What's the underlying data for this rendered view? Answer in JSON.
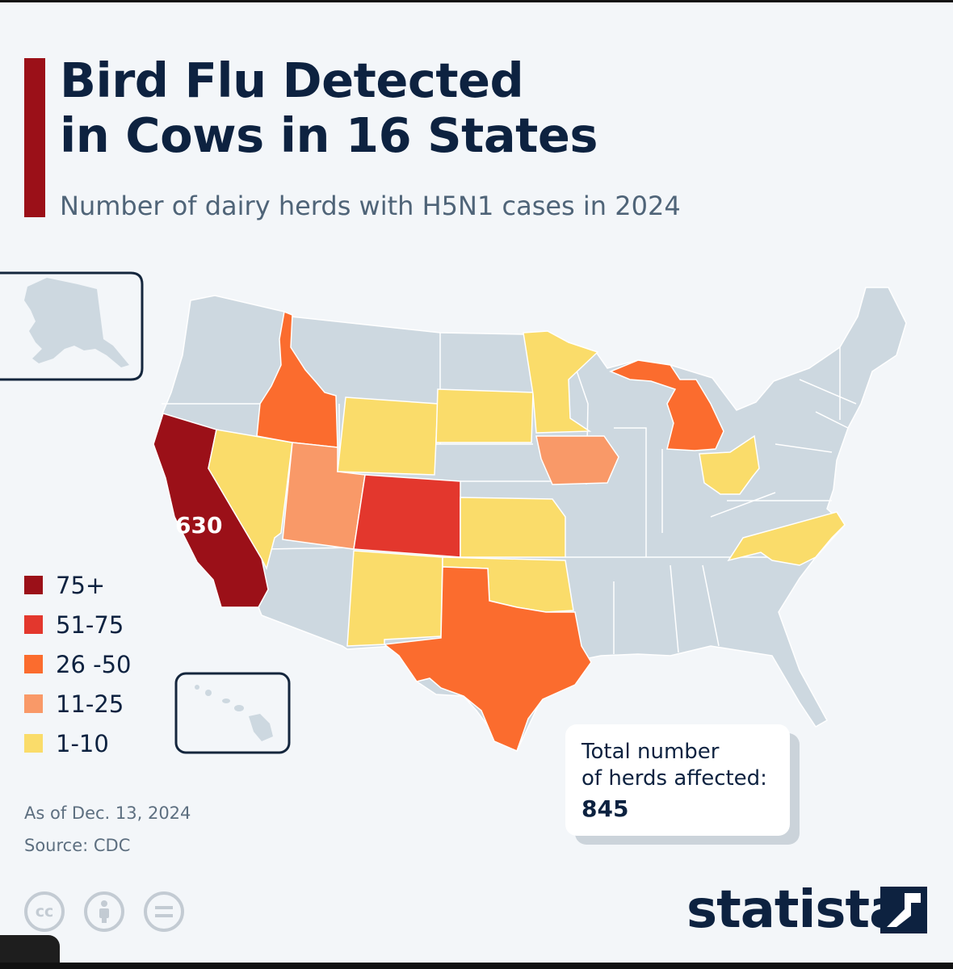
{
  "header": {
    "title_line1": "Bird Flu Detected",
    "title_line2": "in Cows in 16 States",
    "subtitle": "Number of dairy herds with H5N1 cases in 2024"
  },
  "colors": {
    "bin_75_plus": "#9b1018",
    "bin_51_75": "#e3372d",
    "bin_26_50": "#fb6c2e",
    "bin_11_25": "#f99968",
    "bin_1_10": "#fadc6a",
    "no_cases": "#cdd8e0",
    "accent": "#9b1018",
    "text_dark": "#0d2240"
  },
  "legend": [
    {
      "label": "75+",
      "color": "#9b1018"
    },
    {
      "label": "51-75",
      "color": "#e3372d"
    },
    {
      "label": "26 -50",
      "color": "#fb6c2e"
    },
    {
      "label": "11-25",
      "color": "#f99968"
    },
    {
      "label": "1-10",
      "color": "#fadc6a"
    }
  ],
  "map": {
    "callout_value": "630",
    "states_by_bin": {
      "75+": [
        "California"
      ],
      "51-75": [
        "Colorado"
      ],
      "26-50": [
        "Idaho",
        "Michigan",
        "Texas"
      ],
      "11-25": [
        "Utah",
        "Iowa"
      ],
      "1-10": [
        "Nevada",
        "Wyoming",
        "South Dakota",
        "Minnesota",
        "Kansas",
        "New Mexico",
        "Oklahoma",
        "Ohio",
        "North Carolina"
      ]
    },
    "insets": [
      "alaska-icon",
      "hawaii-icon"
    ]
  },
  "total": {
    "label_line1": "Total number",
    "label_line2": "of herds affected:",
    "value": "845"
  },
  "footer": {
    "as_of": "As of Dec. 13, 2024",
    "source": "Source: CDC",
    "license_icons": [
      "cc-icon",
      "by-icon",
      "nd-icon"
    ],
    "brand": "statista"
  }
}
